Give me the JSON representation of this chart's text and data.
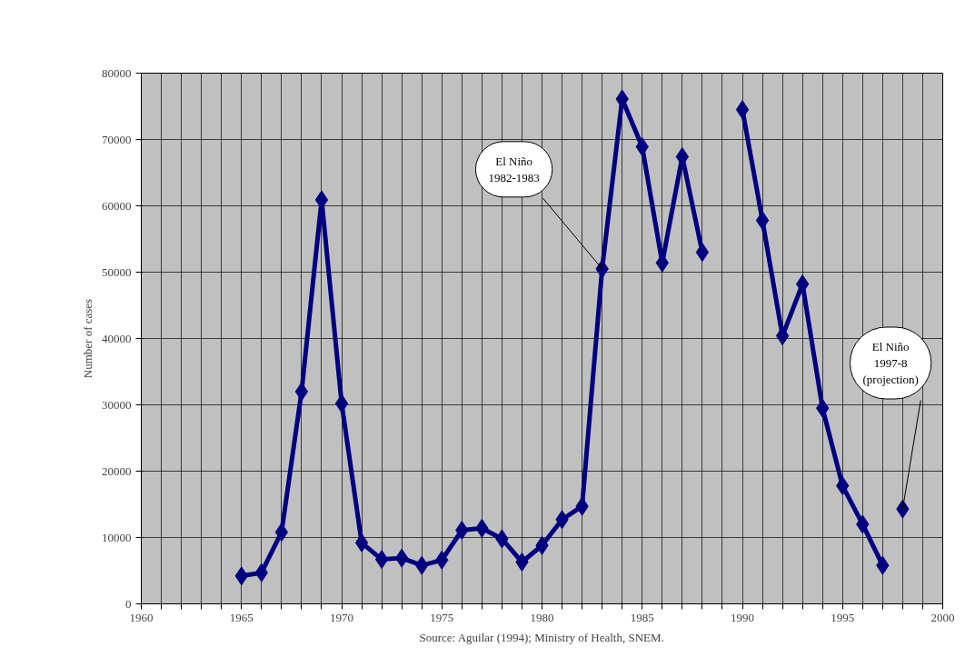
{
  "chart_data": {
    "type": "line",
    "ylabel": "Number of cases",
    "x": [
      1965,
      1966,
      1967,
      1968,
      1969,
      1970,
      1971,
      1972,
      1973,
      1974,
      1975,
      1976,
      1977,
      1978,
      1979,
      1980,
      1981,
      1982,
      1983,
      1984,
      1985,
      1986,
      1987,
      1988,
      1989,
      1990,
      1991,
      1992,
      1993,
      1994,
      1995,
      1996,
      1997
    ],
    "series": [
      {
        "color": "#000080",
        "values": [
          4200,
          4700,
          10800,
          32000,
          60900,
          30200,
          9200,
          6700,
          6900,
          5800,
          6600,
          11100,
          11400,
          9800,
          6300,
          8800,
          12700,
          14700,
          50500,
          76100,
          68900,
          51400,
          67400,
          53000,
          null,
          74500,
          57800,
          40400,
          48200,
          29500,
          17800,
          12000,
          5800
        ]
      },
      {
        "type": "scatter",
        "color": "#000080",
        "x": [
          1998
        ],
        "values": [
          14300
        ]
      }
    ],
    "xlim": [
      1960,
      2000
    ],
    "ylim": [
      0,
      80000
    ],
    "xticks": [
      1960,
      {
        "value": 1961,
        "label": null
      },
      {
        "value": 1962,
        "label": null
      },
      {
        "value": 1963,
        "label": null
      },
      {
        "value": 1964,
        "label": null
      },
      1965,
      {
        "value": 1966,
        "label": null
      },
      {
        "value": 1967,
        "label": null
      },
      {
        "value": 1968,
        "label": null
      },
      {
        "value": 1969,
        "label": null
      },
      1970,
      {
        "value": 1971,
        "label": null
      },
      {
        "value": 1972,
        "label": null
      },
      {
        "value": 1973,
        "label": null
      },
      {
        "value": 1974,
        "label": null
      },
      1975,
      {
        "value": 1976,
        "label": null
      },
      {
        "value": 1977,
        "label": null
      },
      {
        "value": 1978,
        "label": null
      },
      {
        "value": 1979,
        "label": null
      },
      1980,
      {
        "value": 1981,
        "label": null
      },
      {
        "value": 1982,
        "label": null
      },
      {
        "value": 1983,
        "label": null
      },
      {
        "value": 1984,
        "label": null
      },
      1985,
      {
        "value": 1986,
        "label": null
      },
      {
        "value": 1987,
        "label": null
      },
      {
        "value": 1988,
        "label": null
      },
      {
        "value": 1989,
        "label": null
      },
      1990,
      {
        "value": 1991,
        "label": null
      },
      {
        "value": 1992,
        "label": null
      },
      {
        "value": 1993,
        "label": null
      },
      {
        "value": 1994,
        "label": null
      },
      1995,
      {
        "value": 1996,
        "label": null
      },
      {
        "value": 1997,
        "label": null
      },
      {
        "value": 1998,
        "label": null
      },
      {
        "value": 1999,
        "label": null
      },
      2000
    ],
    "yticks": [
      0,
      10000,
      20000,
      30000,
      40000,
      50000,
      60000,
      70000,
      80000
    ],
    "grid": true,
    "marker": "diamond",
    "line_style": "solid",
    "annotations": [
      {
        "text": "El Niño\n1982-1983",
        "x": 1983,
        "y": 50500
      },
      {
        "text": "El Niño\n1997-8\n(projection)",
        "x": 1998,
        "y": 14300
      },
      "Source: Aguilar (1994); Ministry of Health, SNEM."
    ]
  }
}
